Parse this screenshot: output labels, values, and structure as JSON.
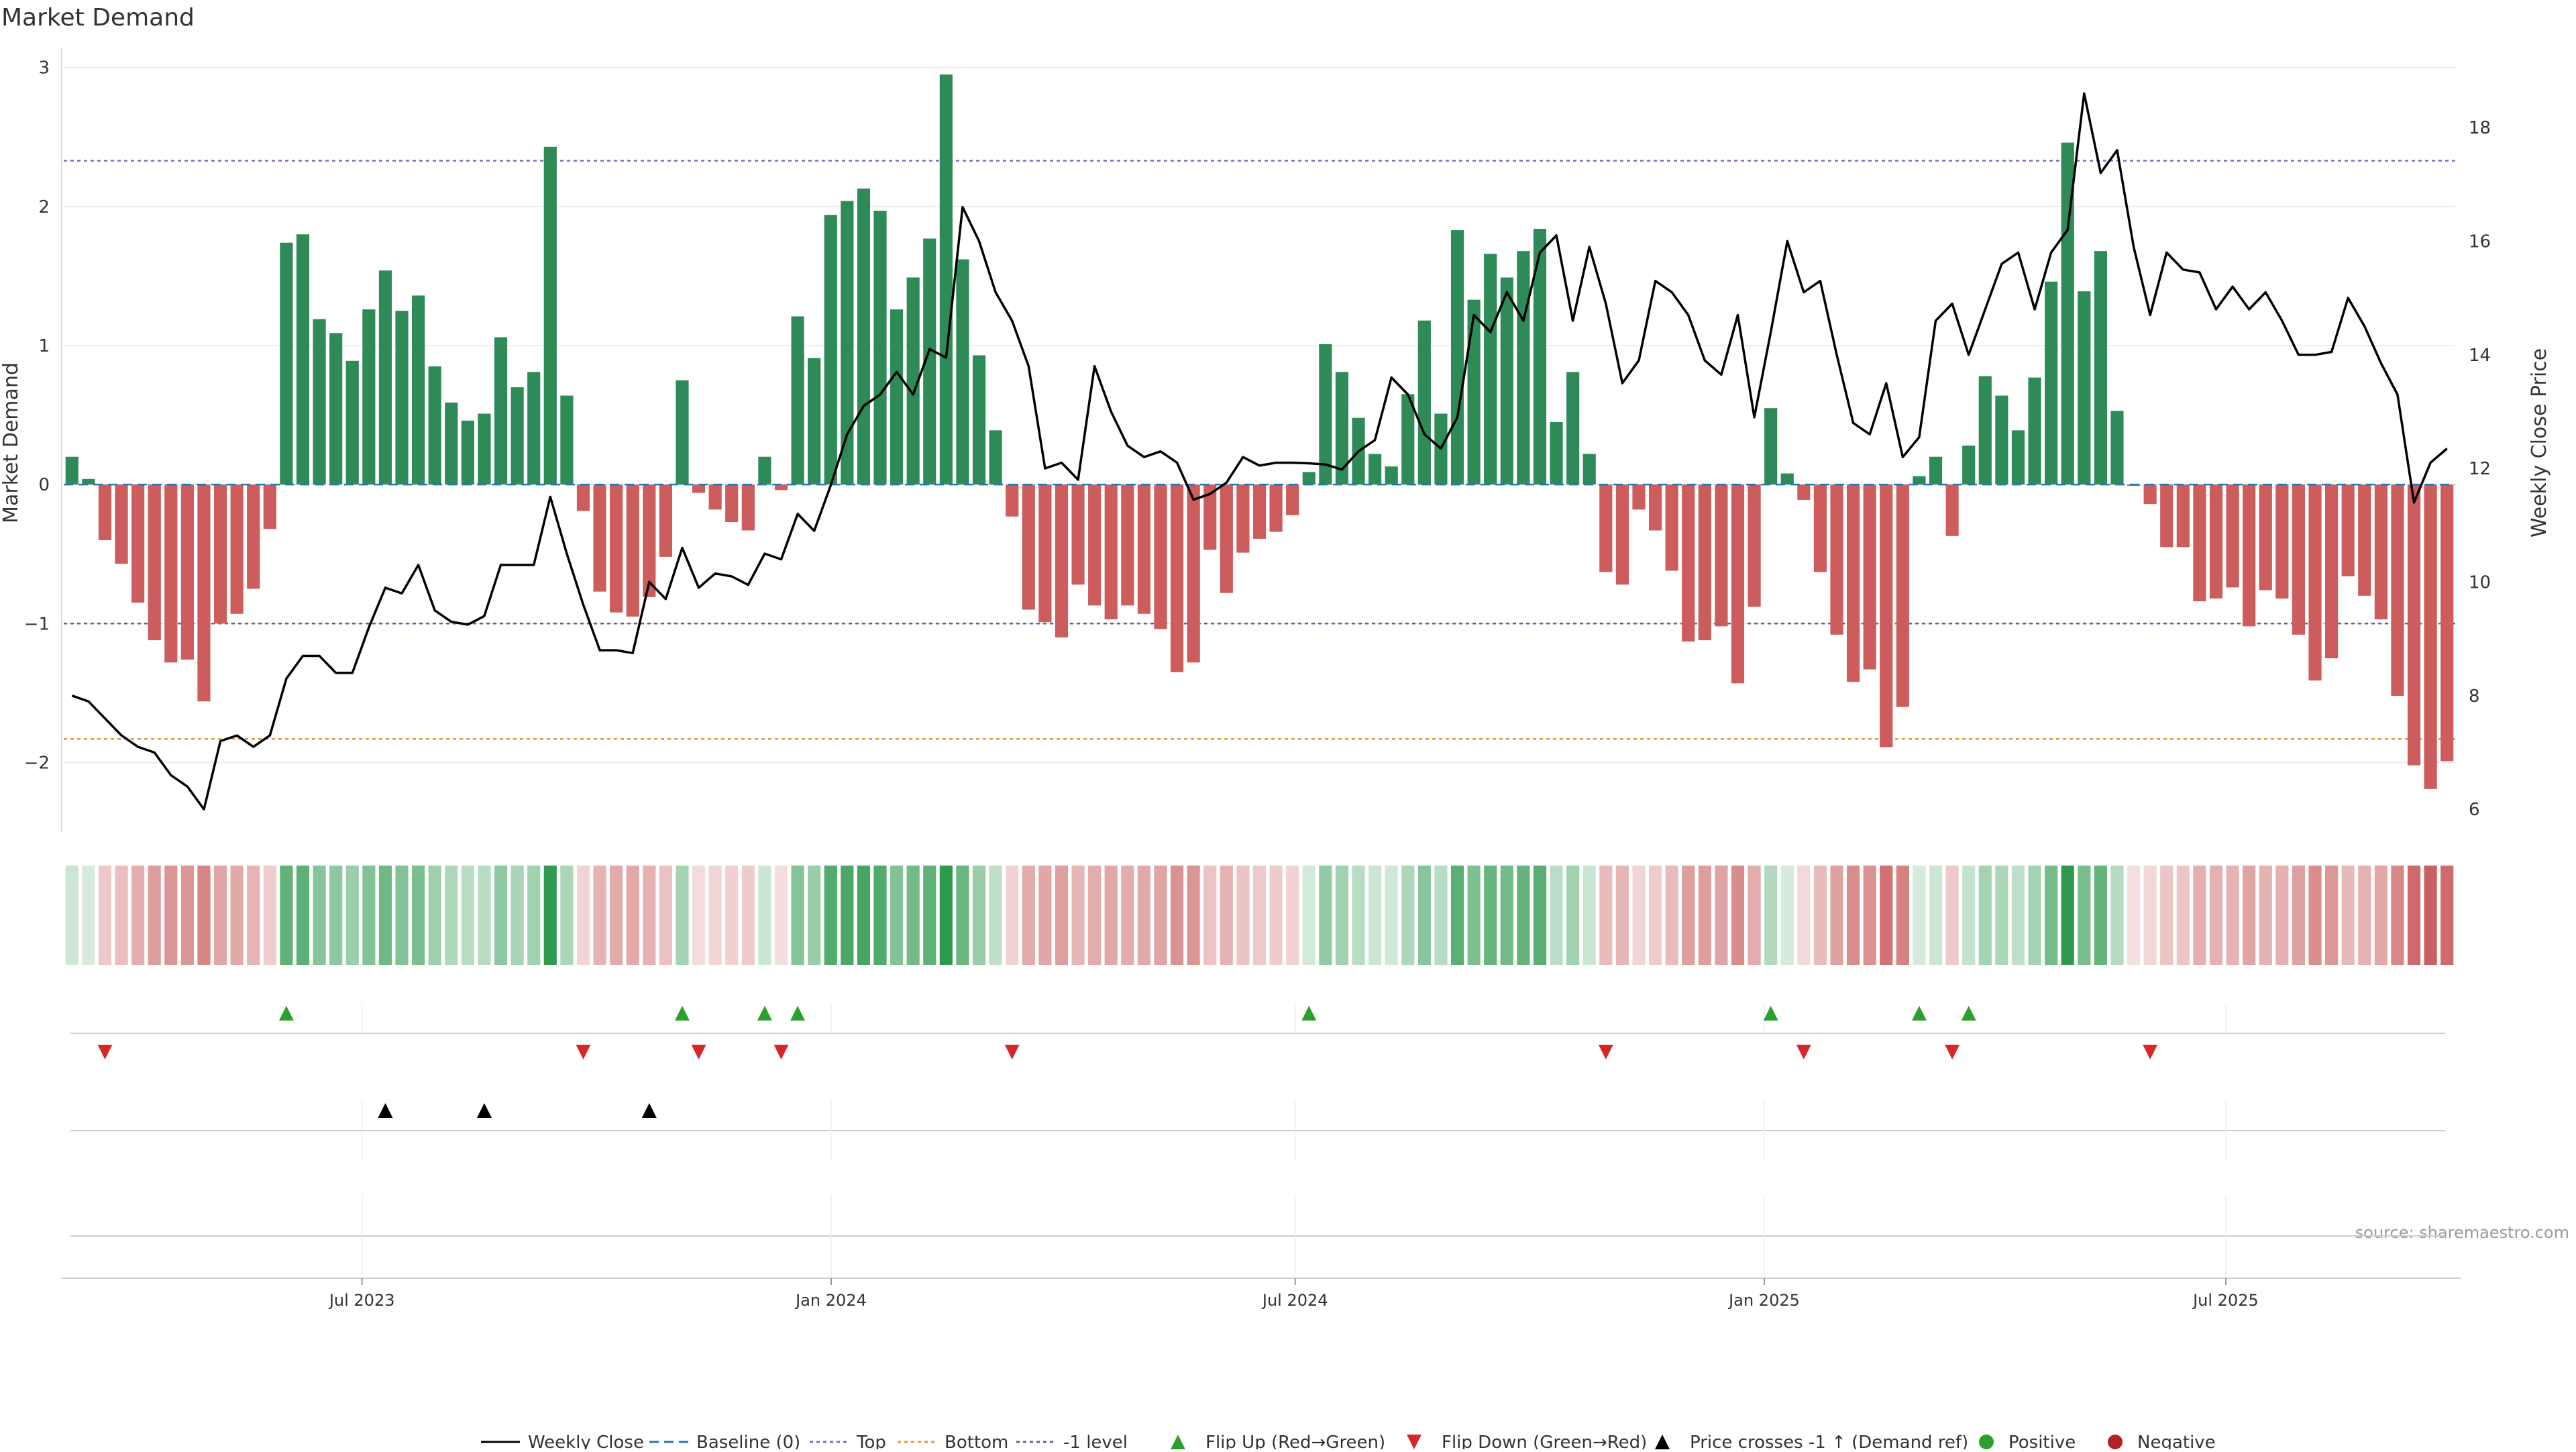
{
  "title": "Market Demand",
  "source": "source: sharemaestro.com",
  "colors": {
    "positive": "#2e8b57",
    "negative": "#cd5c5c",
    "price": "#000000",
    "top": "#7b68c8",
    "bottom": "#e8923a",
    "minus1": "#6a5a9a",
    "baseline": "#1f77b4",
    "flip_up": "#2ca02c",
    "flip_down": "#d62728",
    "cross": "#000000",
    "pos_dot": "#2ca02c",
    "neg_dot": "#b22222",
    "grid": "#e8e8e8"
  },
  "chart_data": {
    "type": "bar",
    "title": "Market Demand",
    "ylabel": "Market Demand",
    "y2label": "Weekly Close Price",
    "ylim": [
      -2.5,
      3.1
    ],
    "y2lim": [
      5.6,
      19.3
    ],
    "yticks": [
      -2,
      -1,
      0,
      1,
      2,
      3
    ],
    "y2ticks": [
      6,
      8,
      10,
      12,
      14,
      16,
      18
    ],
    "x_start": "2023-03-06",
    "x_end": "2025-09-29",
    "xticks": [
      {
        "date": "2023-07-01",
        "label": "Jul 2023"
      },
      {
        "date": "2024-01-01",
        "label": "Jan 2024"
      },
      {
        "date": "2024-07-01",
        "label": "Jul 2024"
      },
      {
        "date": "2025-01-01",
        "label": "Jan 2025"
      },
      {
        "date": "2025-07-01",
        "label": "Jul 2025"
      }
    ],
    "levels": {
      "top": 2.33,
      "bottom": -1.83,
      "minus_one": -1.0,
      "baseline": 0
    },
    "demand": [
      0.2,
      0.04,
      -0.4,
      -0.57,
      -0.85,
      -1.12,
      -1.28,
      -1.26,
      -1.56,
      -1.0,
      -0.93,
      -0.75,
      -0.32,
      1.74,
      1.8,
      1.19,
      1.09,
      0.89,
      1.26,
      1.54,
      1.25,
      1.36,
      0.85,
      0.59,
      0.46,
      0.51,
      1.06,
      0.7,
      0.81,
      2.43,
      0.64,
      -0.19,
      -0.77,
      -0.92,
      -0.95,
      -0.81,
      -0.52,
      0.75,
      -0.06,
      -0.18,
      -0.27,
      -0.33,
      0.2,
      -0.04,
      1.21,
      0.91,
      1.94,
      2.04,
      2.13,
      1.97,
      1.26,
      1.49,
      1.77,
      2.95,
      1.62,
      0.93,
      0.39,
      -0.23,
      -0.9,
      -0.99,
      -1.1,
      -0.72,
      -0.87,
      -0.97,
      -0.87,
      -0.93,
      -1.04,
      -1.35,
      -1.28,
      -0.47,
      -0.78,
      -0.49,
      -0.39,
      -0.34,
      -0.22,
      0.09,
      1.01,
      0.81,
      0.48,
      0.22,
      0.13,
      0.65,
      1.18,
      0.51,
      1.83,
      1.33,
      1.66,
      1.49,
      1.68,
      1.84,
      0.45,
      0.81,
      0.22,
      -0.63,
      -0.72,
      -0.18,
      -0.33,
      -0.62,
      -1.13,
      -1.12,
      -1.02,
      -1.43,
      -0.88,
      0.55,
      0.08,
      -0.11,
      -0.63,
      -1.08,
      -1.42,
      -1.33,
      -1.89,
      -1.6,
      0.06,
      0.2,
      -0.37,
      0.28,
      0.78,
      0.64,
      0.39,
      0.77,
      1.46,
      2.46,
      1.39,
      1.68,
      0.53,
      -0.01,
      -0.14,
      -0.45,
      -0.45,
      -0.84,
      -0.82,
      -0.74,
      -1.02,
      -0.76,
      -0.82,
      -1.08,
      -1.41,
      -1.25,
      -0.66,
      -0.8,
      -0.97,
      -1.52,
      -2.02,
      -2.19,
      -1.99
    ],
    "price": [
      8.0,
      7.9,
      7.6,
      7.3,
      7.1,
      7.0,
      6.6,
      6.4,
      6.0,
      7.2,
      7.3,
      7.1,
      7.3,
      8.3,
      8.7,
      8.7,
      8.4,
      8.4,
      9.2,
      9.9,
      9.8,
      10.3,
      9.5,
      9.3,
      9.25,
      9.4,
      10.3,
      10.3,
      10.3,
      11.5,
      10.5,
      9.6,
      8.8,
      8.8,
      8.75,
      10.0,
      9.7,
      10.6,
      9.9,
      10.15,
      10.1,
      9.95,
      10.5,
      10.4,
      11.2,
      10.9,
      11.7,
      12.6,
      13.1,
      13.3,
      13.7,
      13.3,
      14.1,
      13.95,
      16.6,
      16.0,
      15.1,
      14.6,
      13.8,
      12.0,
      12.1,
      11.8,
      13.8,
      13.0,
      12.4,
      12.2,
      12.3,
      12.1,
      11.45,
      11.55,
      11.75,
      12.2,
      12.05,
      12.1,
      12.1,
      12.09,
      12.07,
      11.98,
      12.3,
      12.5,
      13.6,
      13.3,
      12.6,
      12.35,
      12.9,
      14.7,
      14.4,
      15.1,
      14.6,
      15.8,
      16.1,
      14.6,
      15.9,
      14.9,
      13.5,
      13.9,
      15.3,
      15.1,
      14.7,
      13.9,
      13.65,
      14.7,
      12.9,
      14.4,
      16.0,
      15.1,
      15.3,
      14.0,
      12.8,
      12.6,
      13.5,
      12.2,
      12.55,
      14.6,
      14.9,
      14.0,
      14.8,
      15.6,
      15.8,
      14.8,
      15.8,
      16.2,
      18.6,
      17.2,
      17.6,
      15.9,
      14.7,
      15.8,
      15.5,
      15.45,
      14.8,
      15.2,
      14.8,
      15.1,
      14.6,
      14.0,
      14.0,
      14.05,
      15.0,
      14.5,
      13.85,
      13.3,
      11.4,
      12.1,
      12.35
    ],
    "flip_up_idx": [
      13,
      37,
      42,
      44,
      75,
      103,
      112,
      115
    ],
    "flip_down_idx": [
      2,
      31,
      38,
      43,
      57,
      93,
      105,
      114,
      126
    ],
    "cross_idx": [
      19,
      25,
      35
    ]
  },
  "legend": [
    {
      "key": "weekly_close",
      "label": "Weekly Close",
      "kind": "solid"
    },
    {
      "key": "baseline",
      "label": "Baseline (0)",
      "kind": "dashed"
    },
    {
      "key": "top",
      "label": "Top",
      "kind": "dotted"
    },
    {
      "key": "bottom",
      "label": "Bottom",
      "kind": "dotted"
    },
    {
      "key": "minus1",
      "label": "-1 level",
      "kind": "dotted"
    },
    {
      "key": "flip_up",
      "label": "Flip Up (Red→Green)",
      "kind": "tri-up"
    },
    {
      "key": "flip_down",
      "label": "Flip Down (Green→Red)",
      "kind": "tri-down"
    },
    {
      "key": "cross",
      "label": "Price crosses -1 ↑ (Demand ref)",
      "kind": "tri-up"
    },
    {
      "key": "pos_dot",
      "label": "Positive",
      "kind": "dot"
    },
    {
      "key": "neg_dot",
      "label": "Negative",
      "kind": "dot"
    }
  ]
}
